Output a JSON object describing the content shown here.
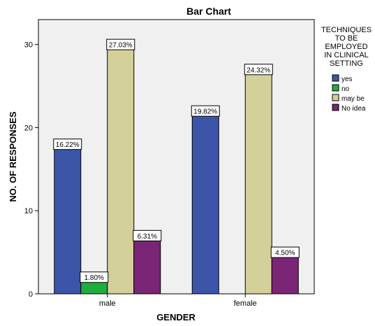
{
  "chart_data": {
    "type": "bar",
    "title": "Bar Chart",
    "xlabel": "GENDER",
    "ylabel": "NO. OF RESPONSES",
    "ylim": [
      0,
      33
    ],
    "yticks": [
      0,
      10,
      20,
      30
    ],
    "categories": [
      "male",
      "female"
    ],
    "legend": {
      "title_lines": [
        "TECHNIQUES",
        "TO BE",
        "EMPLOYED",
        "IN CLINICAL",
        "SETTING"
      ],
      "placement": "right"
    },
    "series": [
      {
        "name": "yes",
        "color": "#3d55a8",
        "values": [
          18,
          22
        ],
        "labels": [
          "16.22%",
          "19.82%"
        ]
      },
      {
        "name": "no",
        "color": "#1fae3c",
        "values": [
          2,
          0
        ],
        "labels": [
          "1.80%",
          null
        ]
      },
      {
        "name": "may be",
        "color": "#d4d09a",
        "values": [
          30,
          27
        ],
        "labels": [
          "27.03%",
          "24.32%"
        ]
      },
      {
        "name": "No idea",
        "color": "#7b2577",
        "values": [
          7,
          5
        ],
        "labels": [
          "6.31%",
          "4.50%"
        ]
      }
    ]
  }
}
